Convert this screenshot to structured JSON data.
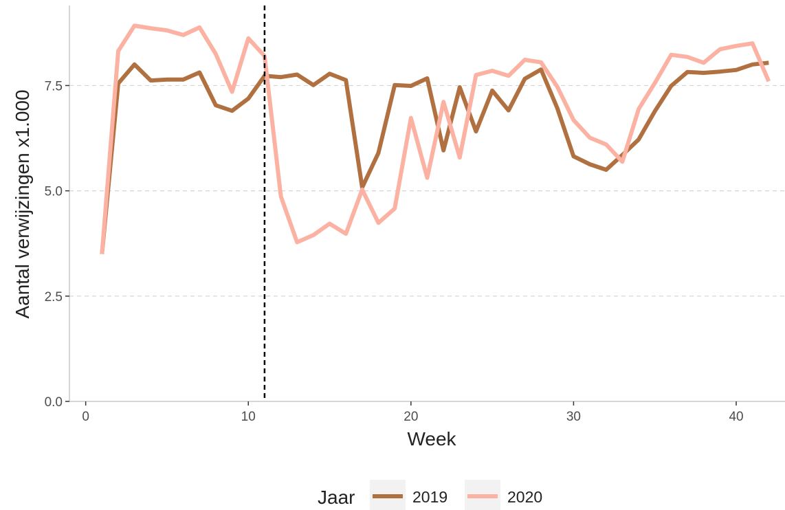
{
  "chart_data": {
    "type": "line",
    "title": "",
    "xlabel": "Week",
    "ylabel": "Aantal verwijzingen x1.000",
    "xlim": [
      -1,
      43
    ],
    "ylim": [
      0,
      9.4
    ],
    "x_ticks": [
      0,
      10,
      20,
      30,
      40
    ],
    "x_tick_labels": [
      "0",
      "10",
      "20",
      "30",
      "40"
    ],
    "y_ticks": [
      0,
      2.5,
      5,
      7.5
    ],
    "y_tick_labels": [
      "0.0",
      "2.5",
      "5.0",
      "7.5"
    ],
    "grid": "horizontal dashed",
    "reference_line": {
      "x": 11,
      "style": "dashed",
      "color": "#000000"
    },
    "legend": {
      "title": "Jaar",
      "position": "bottom"
    },
    "x": [
      1,
      2,
      3,
      4,
      5,
      6,
      7,
      8,
      9,
      10,
      11,
      12,
      13,
      14,
      15,
      16,
      17,
      18,
      19,
      20,
      21,
      22,
      23,
      24,
      25,
      26,
      27,
      28,
      29,
      30,
      31,
      32,
      33,
      34,
      35,
      36,
      37,
      38,
      39,
      40,
      41,
      42
    ],
    "series": [
      {
        "name": "2019",
        "color": "#b07040",
        "values": [
          3.5,
          7.55,
          8.0,
          7.62,
          7.64,
          7.64,
          7.81,
          7.03,
          6.9,
          7.19,
          7.73,
          7.7,
          7.76,
          7.51,
          7.78,
          7.63,
          5.08,
          5.9,
          7.51,
          7.49,
          7.67,
          5.96,
          7.46,
          6.41,
          7.38,
          6.91,
          7.66,
          7.88,
          6.96,
          5.82,
          5.63,
          5.5,
          5.85,
          6.22,
          6.89,
          7.49,
          7.82,
          7.8,
          7.83,
          7.87,
          8.0,
          8.04
        ]
      },
      {
        "name": "2020",
        "color": "#fbb2a3",
        "values": [
          3.5,
          8.32,
          8.92,
          8.86,
          8.81,
          8.7,
          8.88,
          8.25,
          7.35,
          8.62,
          8.2,
          4.87,
          3.78,
          3.95,
          4.22,
          3.98,
          5.03,
          4.24,
          4.58,
          6.73,
          5.31,
          7.11,
          5.79,
          7.75,
          7.85,
          7.73,
          8.11,
          8.05,
          7.47,
          6.68,
          6.26,
          6.1,
          5.69,
          6.94,
          7.56,
          8.23,
          8.18,
          8.04,
          8.36,
          8.44,
          8.5,
          7.6
        ]
      }
    ]
  }
}
